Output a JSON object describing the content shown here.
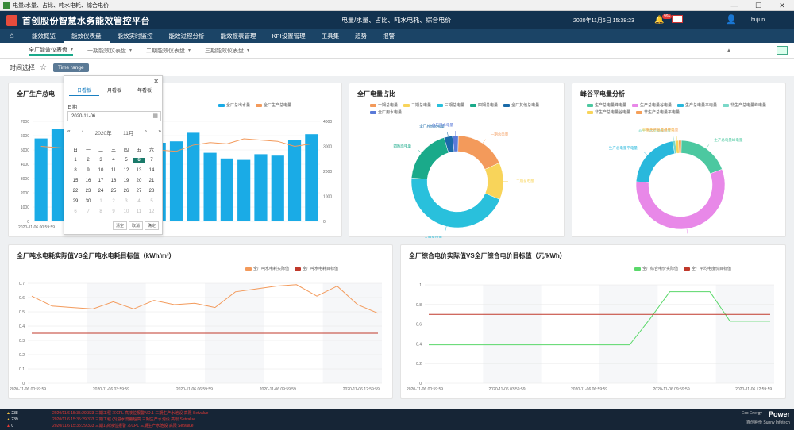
{
  "window": {
    "title": "电量/水量、占比、吨水电耗、综合电价",
    "ctrl": [
      "—",
      "☐",
      "✕"
    ]
  },
  "header": {
    "brand": "首创股份智慧水务能效管控平台",
    "center": "电量/水量、占比、吨水电耗、综合电价",
    "time": "2020年11月6日 15:38:23",
    "badge": "99+",
    "username": "hujun"
  },
  "nav": [
    "能效概览",
    "能效仪表盘",
    "能效实时监控",
    "能效过程分析",
    "能效报表管理",
    "KPI设置管理",
    "工具集",
    "趋势",
    "报警"
  ],
  "nav_active": "能效仪表盘",
  "subnav": [
    "全厂能效仪表盘",
    "一期能效仪表盘",
    "二期能效仪表盘",
    "三期能效仪表盘"
  ],
  "timebar": {
    "label": "时间选择",
    "btn": "Time range"
  },
  "popup": {
    "tabs": [
      "日看板",
      "月看板",
      "年看板"
    ],
    "date_label": "日期",
    "date_value": "2020-11-06",
    "year": "2020年",
    "month": "11月",
    "weekdays": [
      "日",
      "一",
      "二",
      "三",
      "四",
      "五",
      "六"
    ],
    "weeks": [
      [
        "1",
        "2",
        "3",
        "4",
        "5",
        "6",
        "7"
      ],
      [
        "8",
        "9",
        "10",
        "11",
        "12",
        "13",
        "14"
      ],
      [
        "15",
        "16",
        "17",
        "18",
        "19",
        "20",
        "21"
      ],
      [
        "22",
        "23",
        "24",
        "25",
        "26",
        "27",
        "28"
      ],
      [
        "29",
        "30",
        "1",
        "2",
        "3",
        "4",
        "5"
      ],
      [
        "6",
        "7",
        "8",
        "9",
        "10",
        "11",
        "12"
      ]
    ],
    "selected": "6",
    "buttons": [
      "清空",
      "取消",
      "确定"
    ]
  },
  "cards": {
    "c1_title": "全厂生产总电",
    "c2_title": "全厂电量占比",
    "c3_title": "峰谷平电量分析",
    "c4_title": "全厂吨水电耗实际值VS全厂吨水电耗目标值（kWh/m³）",
    "c5_title": "全厂综合电价实际值VS全厂综合电价目标值（元/kWh）"
  },
  "colors": {
    "blue": "#1aabe6",
    "orange": "#f39a5b",
    "red": "#c0392b",
    "green": "#5ad86a"
  },
  "chart_data": [
    {
      "type": "bar",
      "title": "全厂生产总电",
      "legend": [
        "全厂总出水量",
        "全厂生产总电量"
      ],
      "y_left_ticks": [
        "7000",
        "6000",
        "5000",
        "4000",
        "3000",
        "2000",
        "1000",
        "0"
      ],
      "y_right_ticks": [
        "4000",
        "3000",
        "2000",
        "1000",
        "0"
      ],
      "x_first_label": "2020-11-06 00:59:59",
      "series": [
        {
          "name": "全厂总出水量",
          "values": [
            5800,
            6500,
            6200,
            6000,
            5900,
            5800,
            5700,
            5500,
            5600,
            6200,
            4800,
            4400,
            4300,
            4700,
            4600,
            5700,
            6100
          ]
        },
        {
          "name": "全厂生产总电量",
          "values": [
            3000,
            2950,
            2900,
            2850,
            2800,
            2850,
            2900,
            2850,
            2800,
            3050,
            3150,
            3100,
            3300,
            3250,
            3200,
            3000,
            3100
          ]
        }
      ]
    },
    {
      "type": "pie",
      "title": "全厂电量占比",
      "legend": [
        "一期总电量",
        "二期总电量",
        "三期总电量",
        "四期总电量",
        "全厂其他总电量",
        "全厂用水电量"
      ],
      "labels": [
        "一期总电量",
        "二期总电量",
        "三期总电量",
        "四期总电量",
        "全厂其他总电量",
        "全厂用水电量"
      ],
      "values": [
        18,
        13,
        45,
        19,
        3,
        2
      ]
    },
    {
      "type": "pie",
      "title": "峰谷平电量分析",
      "legend": [
        "生产总电量峰电量",
        "生产总电量谷电量",
        "生产总电量平电量",
        "非生产总电量峰电量",
        "非生产总电量谷电量",
        "非生产总电量平电量"
      ],
      "labels": [
        "生产总电量峰电量",
        "生产总电量谷电量",
        "生产总电量平电量",
        "非生产总电量峰电量",
        "非生产总电量谷电量",
        "非生产总电量平电量"
      ],
      "values": [
        19,
        57,
        21,
        1,
        1.2,
        1
      ]
    },
    {
      "type": "line",
      "title": "全厂吨水电耗实际值VS全厂吨水电耗目标值（kWh/m³）",
      "legend": [
        "全厂吨水电耗实际值",
        "全厂吨水电耗目标值"
      ],
      "y_ticks": [
        "0.7",
        "0.6",
        "0.5",
        "0.4",
        "0.3",
        "0.2",
        "0.1",
        "0"
      ],
      "x_labels": [
        "2020-11-06 00:59:59",
        "2020-11-06 03:59:59",
        "2020-11-06 06:59:59",
        "2020-11-06 09:59:59",
        "2020-11-06 12:59:59"
      ],
      "series": [
        {
          "name": "全厂吨水电耗实际值",
          "values": [
            0.61,
            0.54,
            0.53,
            0.52,
            0.57,
            0.52,
            0.58,
            0.55,
            0.56,
            0.53,
            0.64,
            0.66,
            0.68,
            0.69,
            0.61,
            0.68,
            0.55,
            0.49
          ]
        },
        {
          "name": "全厂吨水电耗目标值",
          "values": [
            0.35,
            0.35,
            0.35,
            0.35,
            0.35,
            0.35,
            0.35,
            0.35,
            0.35,
            0.35,
            0.35,
            0.35,
            0.35,
            0.35,
            0.35,
            0.35,
            0.35,
            0.35
          ]
        }
      ]
    },
    {
      "type": "line",
      "title": "全厂综合电价实际值VS全厂综合电价目标值（元/kWh）",
      "legend": [
        "全厂综合电价实际值",
        "全厂平均电度价目标值"
      ],
      "y_ticks": [
        "1",
        "0.8",
        "0.6",
        "0.4",
        "0.2",
        "0"
      ],
      "x_labels": [
        "2020-11-06 00:59:59",
        "2020-11-06 03:59:59",
        "2020-11-06 06:59:59",
        "2020-11-06 09:59:59",
        "2020-11-06 12:59:59"
      ],
      "series": [
        {
          "name": "全厂综合电价实际值",
          "values": [
            0.39,
            0.39,
            0.39,
            0.39,
            0.39,
            0.39,
            0.39,
            0.39,
            0.39,
            0.39,
            0.39,
            0.65,
            0.93,
            0.93,
            0.93,
            0.63,
            0.63,
            0.63
          ]
        },
        {
          "name": "全厂平均电度价目标值",
          "values": [
            0.7,
            0.7,
            0.7,
            0.7,
            0.7,
            0.7,
            0.7,
            0.7,
            0.7,
            0.7,
            0.7,
            0.7,
            0.7,
            0.7,
            0.7,
            0.7,
            0.7,
            0.7
          ]
        }
      ]
    }
  ],
  "bottom": {
    "alarms": [
      "238",
      "239",
      "0"
    ],
    "logs": [
      "2020/11/6    15:35:29:333    三期工程 本CPL 高液位报警NO.1    三期生产水池设    高限    Setvalue",
      "2020/11/6    15:35:29:333    三期工程 (3)进水流量超高    三期生产水池设    高限    Setvalue",
      "2020/11/6    15:35:29:333    三期1 高液位报警 本CPL    三期生产水池设    高限    Setvalue"
    ],
    "logo1": "Eco Energy",
    "power": "Power",
    "logo2": "首创股份 Sunny Infotech"
  }
}
